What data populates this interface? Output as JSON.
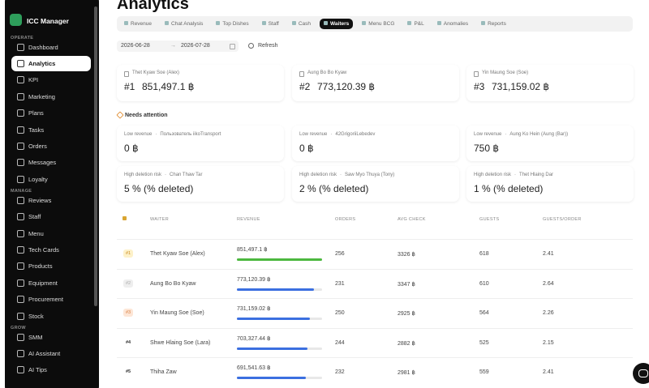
{
  "sidebar": {
    "brand": "ICC Manager",
    "sections": [
      {
        "heading": "OPERATE",
        "items": [
          {
            "label": "Dashboard"
          },
          {
            "label": "Analytics",
            "active": true
          },
          {
            "label": "KPI"
          },
          {
            "label": "Marketing"
          },
          {
            "label": "Plans"
          },
          {
            "label": "Tasks"
          },
          {
            "label": "Orders"
          },
          {
            "label": "Messages"
          },
          {
            "label": "Loyalty"
          }
        ]
      },
      {
        "heading": "MANAGE",
        "items": [
          {
            "label": "Reviews"
          },
          {
            "label": "Staff"
          },
          {
            "label": "Menu"
          },
          {
            "label": "Tech Cards"
          },
          {
            "label": "Products"
          },
          {
            "label": "Equipment"
          },
          {
            "label": "Procurement"
          },
          {
            "label": "Stock"
          }
        ]
      },
      {
        "heading": "GROW",
        "items": [
          {
            "label": "SMM"
          },
          {
            "label": "AI Assistant"
          },
          {
            "label": "AI Tips"
          }
        ]
      }
    ]
  },
  "header": {
    "title": "Analytics"
  },
  "tabs": [
    {
      "label": "Revenue"
    },
    {
      "label": "Chat Analysis"
    },
    {
      "label": "Top Dishes"
    },
    {
      "label": "Staff"
    },
    {
      "label": "Cash"
    },
    {
      "label": "Waiters",
      "active": true
    },
    {
      "label": "Menu BCG"
    },
    {
      "label": "P&L"
    },
    {
      "label": "Anomalies"
    },
    {
      "label": "Reports"
    }
  ],
  "filters": {
    "date_from": "2026-06-28",
    "arrow": "→",
    "date_to": "2026-07-28",
    "refresh": "Refresh"
  },
  "top_waiters": [
    {
      "name": "Thet Kyaw Soe (Alex)",
      "rank": "#1",
      "revenue": "851,497.1 ฿"
    },
    {
      "name": "Aung Bo Bo Kyaw",
      "rank": "#2",
      "revenue": "773,120.39 ฿"
    },
    {
      "name": "Yin Maung Soe (Soe)",
      "rank": "#3",
      "revenue": "731,159.02 ฿"
    }
  ],
  "attention": {
    "title": "Needs attention",
    "separator": "·",
    "cards": [
      {
        "type": "Low revenue",
        "name": "Пользователь iikoTransport",
        "value": "0 ฿"
      },
      {
        "type": "Low revenue",
        "name": "42GrigoriiLebedev",
        "value": "0 ฿"
      },
      {
        "type": "Low revenue",
        "name": "Aung Ko Hein (Aung (Bar))",
        "value": "750 ฿"
      },
      {
        "type": "High deletion risk",
        "name": "Chan Thaw Tar",
        "value": "5 % (% deleted)"
      },
      {
        "type": "High deletion risk",
        "name": "Saw Myo Thuya (Tony)",
        "value": "2 % (% deleted)"
      },
      {
        "type": "High deletion risk",
        "name": "Thet Hlaing Dar",
        "value": "1 % (% deleted)"
      }
    ]
  },
  "table": {
    "columns": [
      "WAITER",
      "REVENUE",
      "ORDERS",
      "AVG CHECK",
      "GUESTS",
      "GUESTS/ORDER"
    ],
    "rows": [
      [
        "#1",
        "Thet Kyaw Soe (Alex)",
        "851,497.1 ฿",
        "256",
        "3326 ฿",
        "618",
        "2.41"
      ],
      [
        "#2",
        "Aung Bo Bo Kyaw",
        "773,120.39 ฿",
        "231",
        "3347 ฿",
        "610",
        "2.64"
      ],
      [
        "#3",
        "Yin Maung Soe (Soe)",
        "731,159.02 ฿",
        "250",
        "2925 ฿",
        "564",
        "2.26"
      ],
      [
        "#4",
        "Shwe Hlaing Soe (Lara)",
        "703,327.44 ฿",
        "244",
        "2882 ฿",
        "525",
        "2.15"
      ],
      [
        "#5",
        "Thiha Zaw",
        "691,541.63 ฿",
        "232",
        "2981 ฿",
        "559",
        "2.41"
      ]
    ]
  }
}
